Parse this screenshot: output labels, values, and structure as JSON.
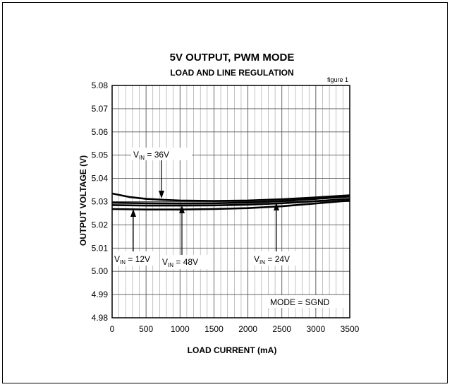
{
  "chart_data": {
    "type": "line",
    "title": "5V OUTPUT, PWM MODE",
    "subtitle": "LOAD AND LINE REGULATION",
    "figure_label": "figure 1",
    "xlabel": "LOAD CURRENT (mA)",
    "ylabel": "OUTPUT  VOLTAGE  (V)",
    "xlim": [
      0,
      3500
    ],
    "ylim": [
      4.98,
      5.08
    ],
    "x_ticks": [
      "0",
      "500",
      "1000",
      "1500",
      "2000",
      "2500",
      "3000",
      "3500"
    ],
    "y_ticks": [
      "5.08",
      "5.07",
      "5.06",
      "5.05",
      "5.04",
      "5.03",
      "5.02",
      "5.01",
      "5.00",
      "4.99",
      "4.98"
    ],
    "grid": true,
    "series": [
      {
        "name": "36V",
        "x": [
          0,
          250,
          500,
          750,
          1000,
          1500,
          2000,
          2500,
          3000,
          3500
        ],
        "y": [
          5.0335,
          5.032,
          5.0312,
          5.0308,
          5.0305,
          5.0303,
          5.0305,
          5.031,
          5.0318,
          5.0327
        ]
      },
      {
        "name": "48V",
        "x": [
          0,
          500,
          1000,
          1500,
          2000,
          2500,
          3000,
          3500
        ],
        "y": [
          5.0295,
          5.0293,
          5.0292,
          5.0293,
          5.0296,
          5.0302,
          5.0312,
          5.0322
        ]
      },
      {
        "name": "12V",
        "x": [
          0,
          500,
          1000,
          1500,
          2000,
          2500,
          3000,
          3500
        ],
        "y": [
          5.0285,
          5.0283,
          5.0283,
          5.0284,
          5.0287,
          5.0293,
          5.0302,
          5.0312
        ]
      },
      {
        "name": "24V",
        "x": [
          0,
          500,
          1000,
          1500,
          2000,
          2500,
          3000,
          3500
        ],
        "y": [
          5.0268,
          5.0266,
          5.0266,
          5.0268,
          5.0272,
          5.028,
          5.0292,
          5.0305
        ]
      }
    ],
    "annotations": [
      {
        "id": "vin36",
        "base": "V",
        "sub": "IN",
        "text": " = 36V"
      },
      {
        "id": "vin12",
        "base": "V",
        "sub": "IN",
        "text": " = 12V"
      },
      {
        "id": "vin48",
        "base": "V",
        "sub": "IN",
        "text": " = 48V"
      },
      {
        "id": "vin24",
        "base": "V",
        "sub": "IN",
        "text": " = 24V"
      },
      {
        "id": "mode",
        "text": "MODE = SGND"
      }
    ]
  }
}
